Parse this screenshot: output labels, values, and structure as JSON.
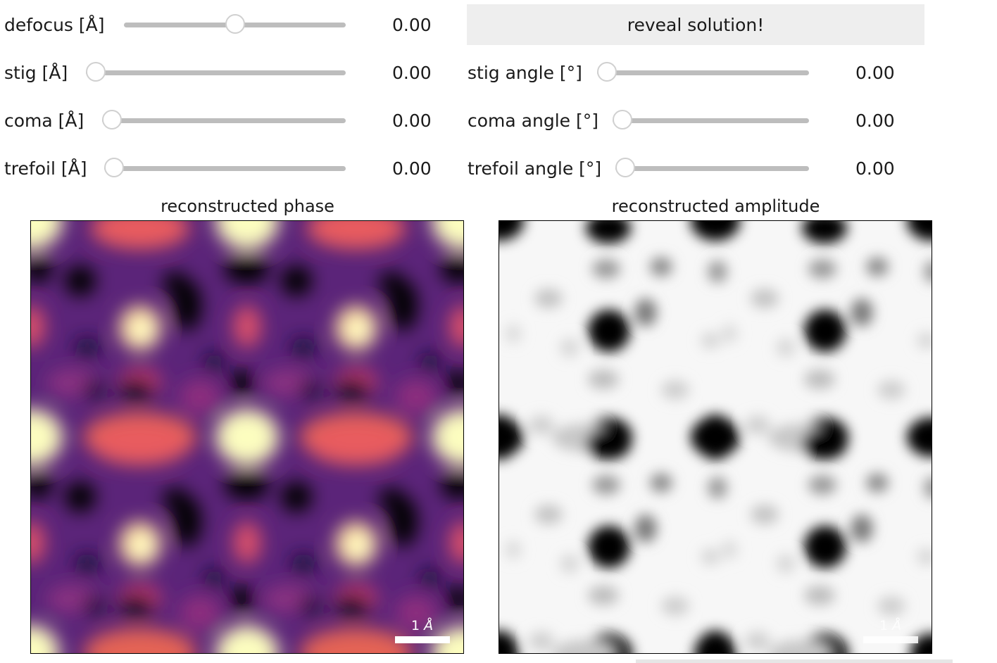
{
  "controls": {
    "defocus": {
      "label": "defocus [Å]",
      "value": "0.00",
      "fraction": 0.5
    },
    "stig": {
      "label": "stig [Å]",
      "value": "0.00",
      "fraction": 0.0
    },
    "coma": {
      "label": "coma [Å]",
      "value": "0.00",
      "fraction": 0.0
    },
    "trefoil": {
      "label": "trefoil [Å]",
      "value": "0.00",
      "fraction": 0.0
    },
    "stig_angle": {
      "label": "stig angle [°]",
      "value": "0.00",
      "fraction": 0.0
    },
    "coma_angle": {
      "label": "coma angle [°]",
      "value": "0.00",
      "fraction": 0.0
    },
    "trefoil_angle": {
      "label": "trefoil angle [°]",
      "value": "0.00",
      "fraction": 0.0
    }
  },
  "reveal_button": {
    "label": "reveal solution!"
  },
  "plots": {
    "phase": {
      "title": "reconstructed phase",
      "colormap": "magma",
      "scalebar": {
        "number": "1",
        "unit": "Å"
      }
    },
    "amplitude": {
      "title": "reconstructed amplitude",
      "colormap": "gray_r",
      "scalebar": {
        "number": "1",
        "unit": "Å"
      }
    }
  },
  "colors": {
    "track": "#bdbdbd",
    "thumb_border": "#d0d0d0",
    "button_bg": "#eeeeee",
    "scalebar_color": "#ffffff"
  }
}
